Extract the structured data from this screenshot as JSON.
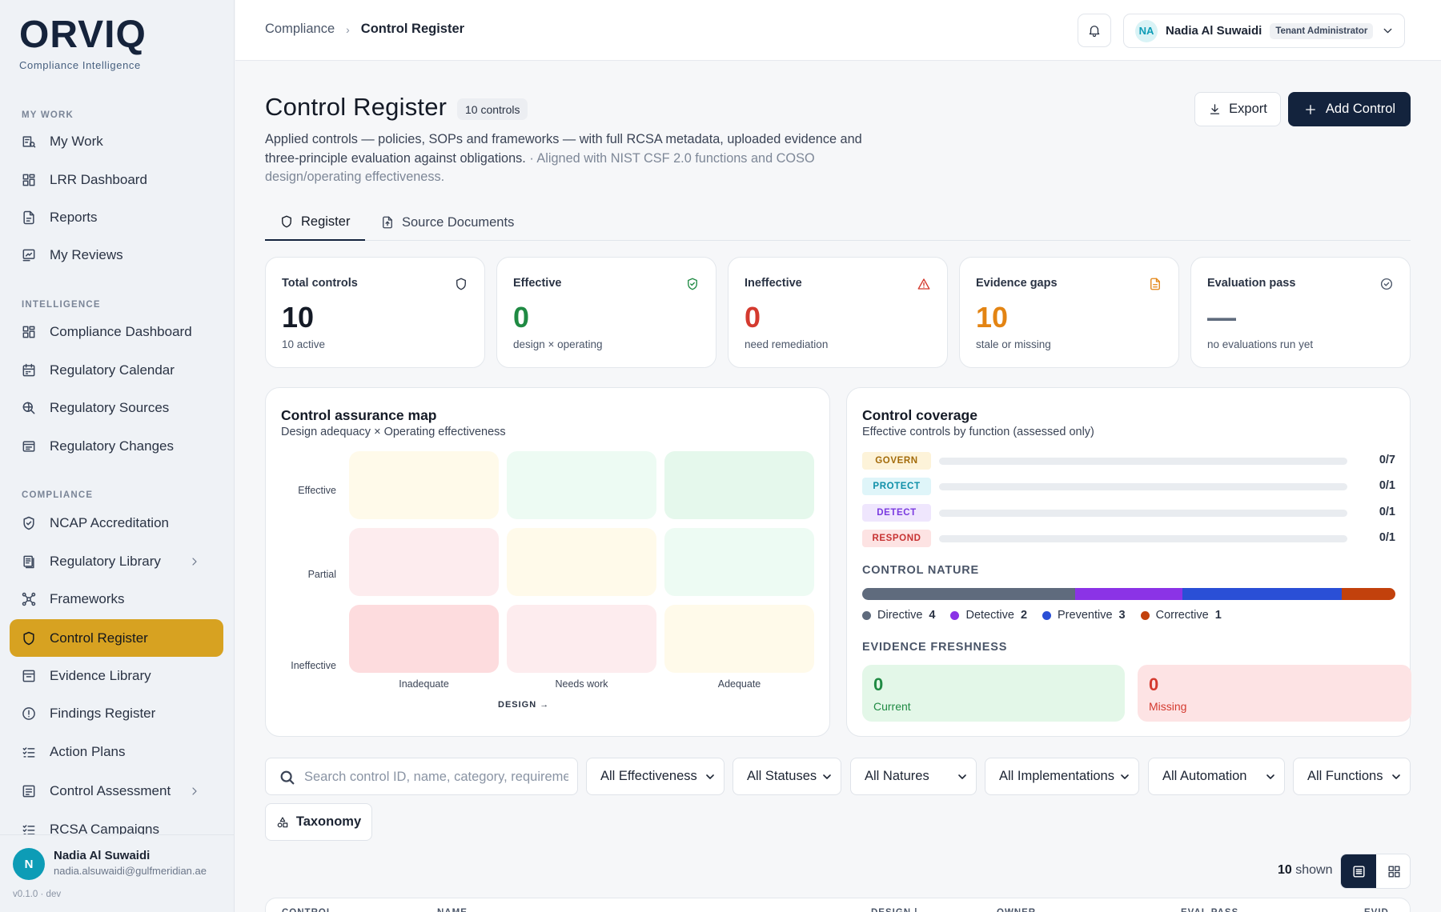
{
  "brand": {
    "name": "ORVIQ",
    "tagline": "Compliance Intelligence"
  },
  "sidebar": {
    "sections": [
      {
        "title": "MY WORK",
        "items": [
          {
            "label": "My Work",
            "icon": "task-list-icon"
          },
          {
            "label": "LRR Dashboard",
            "icon": "dashboard-grid-icon"
          },
          {
            "label": "Reports",
            "icon": "report-icon"
          },
          {
            "label": "My Reviews",
            "icon": "review-icon"
          }
        ]
      },
      {
        "title": "INTELLIGENCE",
        "items": [
          {
            "label": "Compliance Dashboard",
            "icon": "dashboard-grid-icon"
          },
          {
            "label": "Regulatory Calendar",
            "icon": "calendar-icon"
          },
          {
            "label": "Regulatory Sources",
            "icon": "search-globe-icon"
          },
          {
            "label": "Regulatory Changes",
            "icon": "changes-icon"
          }
        ]
      },
      {
        "title": "COMPLIANCE",
        "items": [
          {
            "label": "NCAP Accreditation",
            "icon": "shield-check-icon"
          },
          {
            "label": "Regulatory Library",
            "icon": "library-icon",
            "has_children": true
          },
          {
            "label": "Frameworks",
            "icon": "network-icon"
          },
          {
            "label": "Control Register",
            "icon": "shield-icon",
            "active": true
          },
          {
            "label": "Evidence Library",
            "icon": "archive-icon"
          },
          {
            "label": "Findings Register",
            "icon": "alert-circle-icon"
          },
          {
            "label": "Action Plans",
            "icon": "checklist-icon"
          },
          {
            "label": "Control Assessment",
            "icon": "assessment-icon",
            "has_children": true
          },
          {
            "label": "RCSA Campaigns",
            "icon": "checklist-icon"
          }
        ]
      }
    ],
    "user": {
      "initial": "N",
      "name": "Nadia Al Suwaidi",
      "email": "nadia.alsuwaidi@gulfmeridian.ae"
    },
    "version": "v0.1.0 · dev"
  },
  "header": {
    "breadcrumb": {
      "parent": "Compliance",
      "separator": "›",
      "current": "Control Register"
    },
    "user": {
      "initials": "NA",
      "name": "Nadia Al Suwaidi",
      "role": "Tenant Administrator"
    }
  },
  "page": {
    "title": "Control Register",
    "count_badge": "10 controls",
    "description": "Applied controls — policies, SOPs and frameworks — with full RCSA metadata, uploaded evidence and three-principle evaluation against obligations.",
    "description_note": " · Aligned with NIST CSF 2.0 functions and COSO design/operating effectiveness.",
    "export_label": "Export",
    "add_label": "Add Control"
  },
  "tabs": [
    {
      "label": "Register",
      "icon": "shield-icon",
      "active": true
    },
    {
      "label": "Source Documents",
      "icon": "file-upload-icon",
      "active": false
    }
  ],
  "kpis": [
    {
      "label": "Total controls",
      "value": "10",
      "sub": "10 active",
      "color": "#141a26",
      "icon": "shield-icon",
      "icon_color": "#2a3344"
    },
    {
      "label": "Effective",
      "value": "0",
      "sub": "design × operating",
      "color": "#1f8a43",
      "icon": "shield-check-icon",
      "icon_color": "#1f8a43"
    },
    {
      "label": "Ineffective",
      "value": "0",
      "sub": "need remediation",
      "color": "#d43a2f",
      "icon": "warning-triangle-icon",
      "icon_color": "#d43a2f"
    },
    {
      "label": "Evidence gaps",
      "value": "10",
      "sub": "stale or missing",
      "color": "#e38413",
      "icon": "document-icon",
      "icon_color": "#e38413"
    },
    {
      "label": "Evaluation pass",
      "value": "—",
      "sub": "no evaluations run yet",
      "color": "#5f6b7d",
      "icon": "check-circle-icon",
      "icon_color": "#4a5568"
    }
  ],
  "assurance_map": {
    "title": "Control assurance map",
    "subtitle": "Design adequacy × Operating effectiveness",
    "y_labels": [
      "Effective",
      "Partial",
      "Ineffective"
    ],
    "x_labels": [
      "Inadequate",
      "Needs work",
      "Adequate"
    ],
    "x_axis_label": "DESIGN →",
    "cell_colors": [
      [
        "#fffaea",
        "#edfbf3",
        "#e5f8ec"
      ],
      [
        "#fdecee",
        "#fffaea",
        "#edfbf3"
      ],
      [
        "#fddcde",
        "#fdecee",
        "#fffaea"
      ]
    ]
  },
  "coverage": {
    "title": "Control coverage",
    "subtitle": "Effective controls by function (assessed only)",
    "functions": [
      {
        "name": "GOVERN",
        "effective": 0,
        "total": 7,
        "display": "0/7",
        "bg": "#fdf3d9",
        "fg": "#a36b0a"
      },
      {
        "name": "PROTECT",
        "effective": 0,
        "total": 1,
        "display": "0/1",
        "bg": "#dff5f9",
        "fg": "#0e8fa8"
      },
      {
        "name": "DETECT",
        "effective": 0,
        "total": 1,
        "display": "0/1",
        "bg": "#efe6fd",
        "fg": "#7a3ae0"
      },
      {
        "name": "RESPOND",
        "effective": 0,
        "total": 1,
        "display": "0/1",
        "bg": "#fde3e3",
        "fg": "#c73333"
      }
    ],
    "nature_title": "CONTROL NATURE",
    "nature": [
      {
        "label": "Directive",
        "count": 4,
        "color": "#5f6b7d"
      },
      {
        "label": "Detective",
        "count": 2,
        "color": "#8b33e6"
      },
      {
        "label": "Preventive",
        "count": 3,
        "color": "#2a4fd6"
      },
      {
        "label": "Corrective",
        "count": 1,
        "color": "#c2410c"
      }
    ],
    "freshness_title": "EVIDENCE FRESHNESS",
    "freshness": [
      {
        "value": "0",
        "label": "Current",
        "bg": "#e3f7e8",
        "fg": "#1f8a43"
      },
      {
        "value": "0",
        "label": "Missing",
        "bg": "#fde3e4",
        "fg": "#d43a2f"
      }
    ]
  },
  "filters": {
    "search_placeholder": "Search control ID, name, category, requirement",
    "selects": [
      "All Effectiveness",
      "All Statuses",
      "All Natures",
      "All Implementations",
      "All Automation",
      "All Functions"
    ],
    "taxonomy_label": "Taxonomy"
  },
  "results": {
    "count": "10",
    "suffix": " shown"
  },
  "table": {
    "columns": [
      "CONTROL",
      "NAME",
      "DESIGN |",
      "OWNER",
      "EVAL PASS",
      "EVID"
    ]
  }
}
